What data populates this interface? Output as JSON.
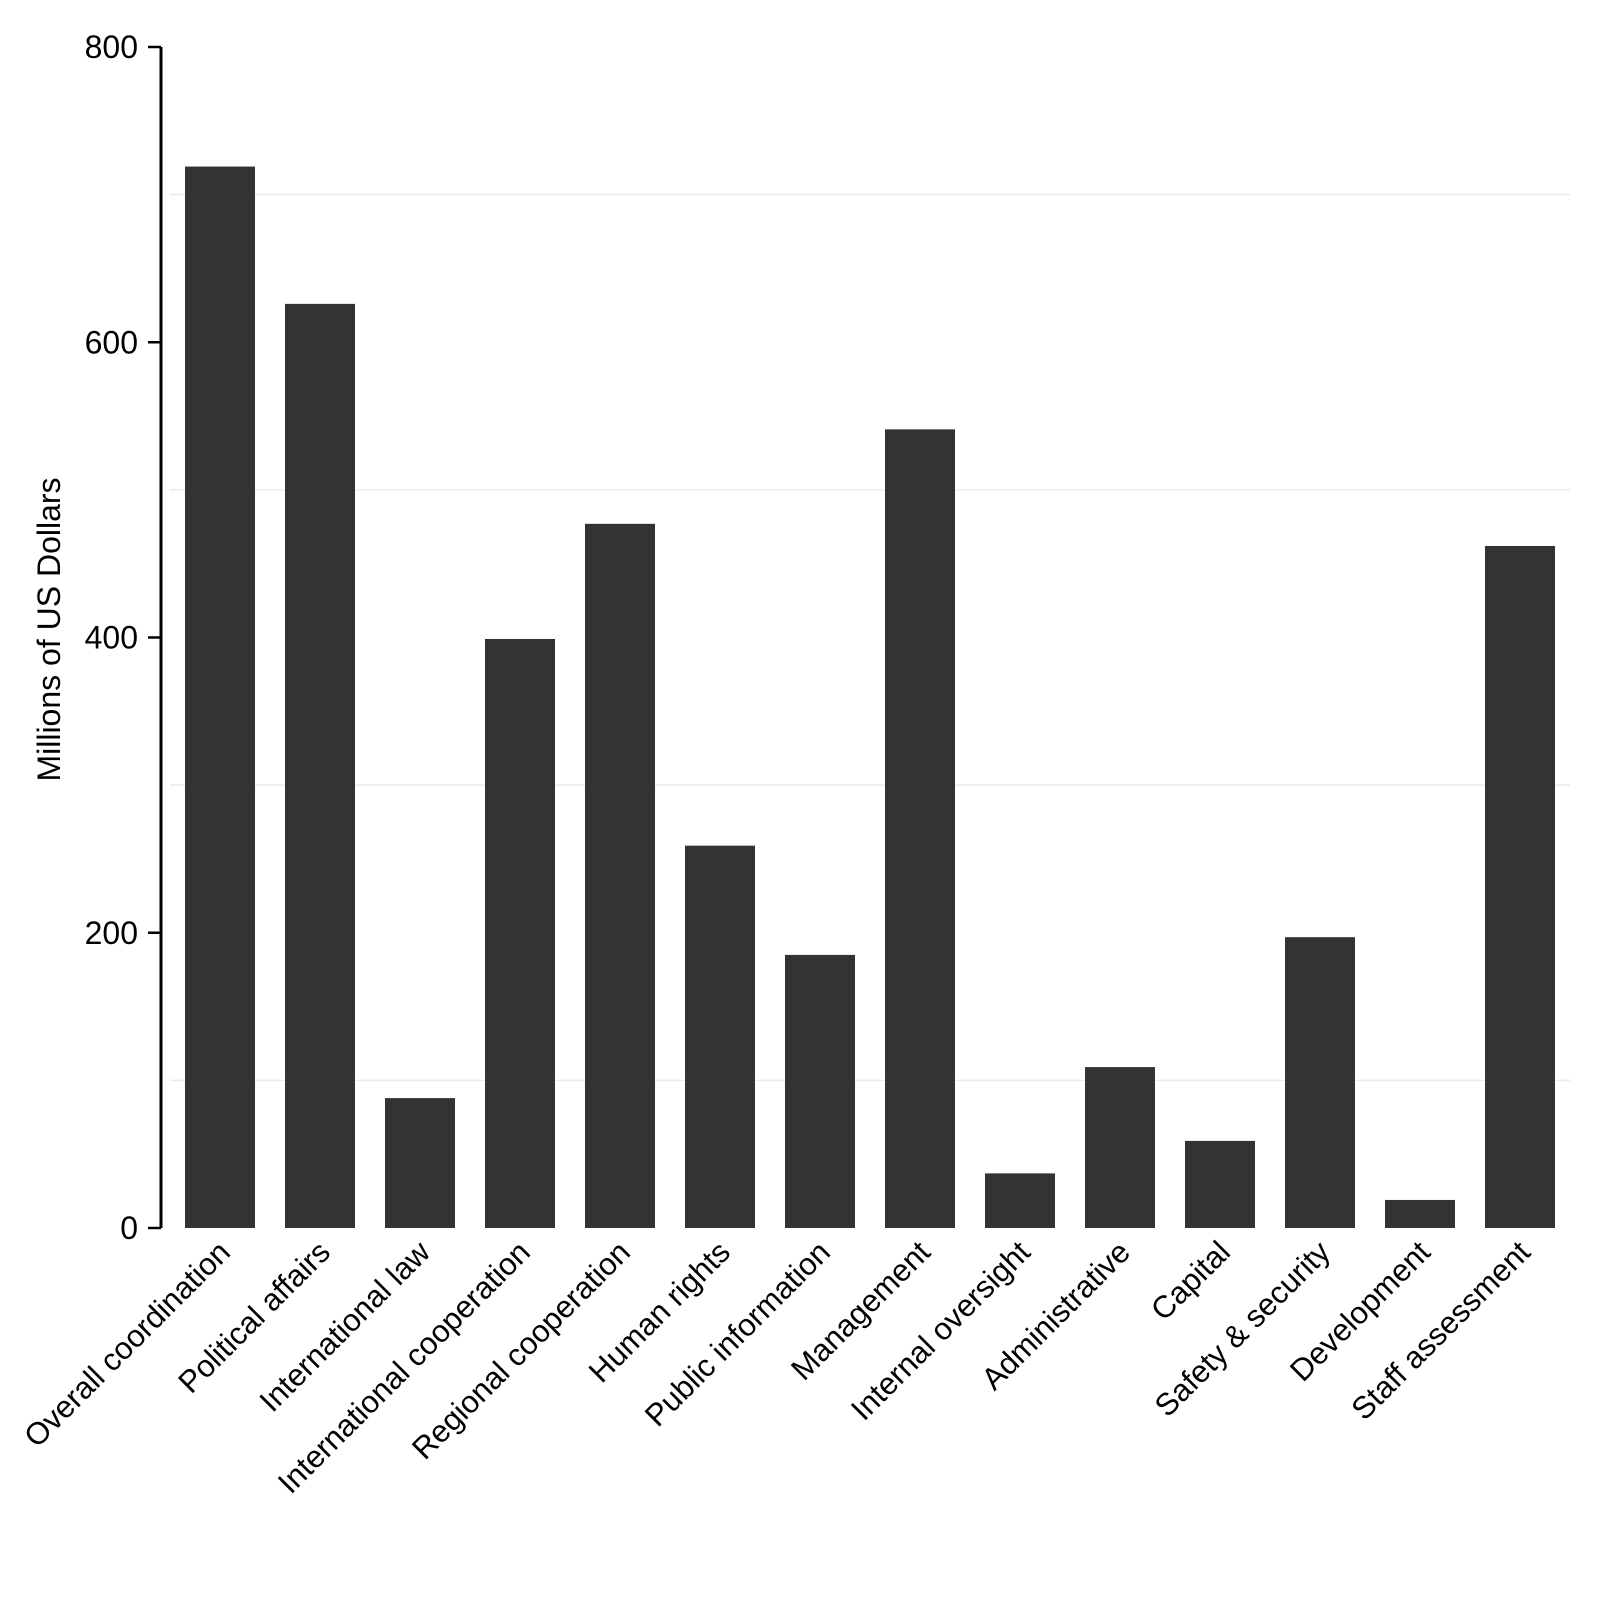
{
  "chart_data": {
    "type": "bar",
    "title": "",
    "xlabel": "",
    "ylabel": "Millions of US Dollars",
    "ylim": [
      0,
      800
    ],
    "yticks": [
      0,
      200,
      400,
      600,
      800
    ],
    "minor_gridlines": [
      100,
      300,
      500,
      700
    ],
    "grid": "minor horizontal only",
    "bar_color": "#333333",
    "categories": [
      "Overall coordination",
      "Political affairs",
      "International law",
      "International cooperation",
      "Regional cooperation",
      "Human rights",
      "Public information",
      "Management",
      "Internal oversight",
      "Administrative",
      "Capital",
      "Safety & security",
      "Development",
      "Staff assessment"
    ],
    "values": [
      719,
      626,
      88,
      399,
      477,
      259,
      185,
      541,
      37,
      109,
      59,
      197,
      19,
      462
    ]
  }
}
